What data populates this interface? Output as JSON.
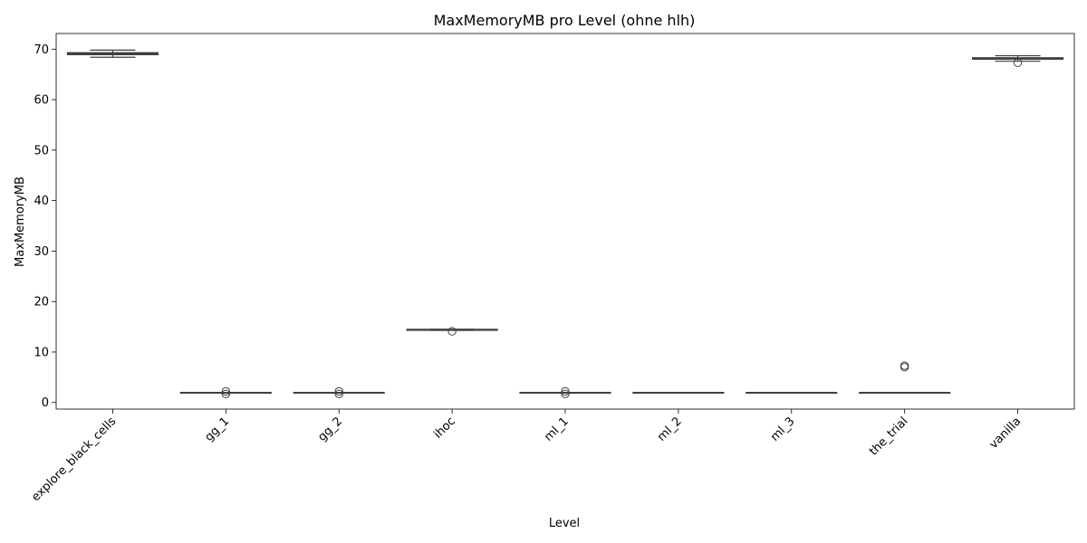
{
  "chart_data": {
    "type": "box",
    "title": "MaxMemoryMB pro Level (ohne hlh)",
    "xlabel": "Level",
    "ylabel": "MaxMemoryMB",
    "ylim": [
      -1.3,
      73.1
    ],
    "yticks": [
      0,
      10,
      20,
      30,
      40,
      50,
      60,
      70
    ],
    "grid": false,
    "colors": {
      "box_face": "#3a75ad",
      "line": "#3f3f3f",
      "frame": "#000000"
    },
    "categories": [
      "explore_black_cells",
      "gg_1",
      "gg_2",
      "ihoc",
      "ml_1",
      "ml_2",
      "ml_3",
      "the_trial",
      "vanilla"
    ],
    "boxes": [
      {
        "category": "explore_black_cells",
        "whisker_low": 68.4,
        "q1": 68.9,
        "median": 69.1,
        "q3": 69.3,
        "whisker_high": 69.8,
        "outliers": []
      },
      {
        "category": "gg_1",
        "whisker_low": 1.9,
        "q1": 1.9,
        "median": 1.9,
        "q3": 2.0,
        "whisker_high": 2.0,
        "outliers": [
          1.7,
          2.2
        ]
      },
      {
        "category": "gg_2",
        "whisker_low": 1.9,
        "q1": 1.9,
        "median": 1.9,
        "q3": 2.0,
        "whisker_high": 2.0,
        "outliers": [
          1.7,
          2.2
        ]
      },
      {
        "category": "ihoc",
        "whisker_low": 14.3,
        "q1": 14.3,
        "median": 14.4,
        "q3": 14.5,
        "whisker_high": 14.5,
        "outliers": [
          14.1
        ]
      },
      {
        "category": "ml_1",
        "whisker_low": 1.9,
        "q1": 1.9,
        "median": 1.9,
        "q3": 2.0,
        "whisker_high": 2.0,
        "outliers": [
          1.7,
          2.2
        ]
      },
      {
        "category": "ml_2",
        "whisker_low": 1.9,
        "q1": 1.9,
        "median": 1.9,
        "q3": 2.0,
        "whisker_high": 2.0,
        "outliers": []
      },
      {
        "category": "ml_3",
        "whisker_low": 1.9,
        "q1": 1.9,
        "median": 1.9,
        "q3": 2.0,
        "whisker_high": 2.0,
        "outliers": []
      },
      {
        "category": "the_trial",
        "whisker_low": 1.9,
        "q1": 1.9,
        "median": 1.9,
        "q3": 2.0,
        "whisker_high": 2.0,
        "outliers": [
          7.0,
          7.3
        ]
      },
      {
        "category": "vanilla",
        "whisker_low": 67.6,
        "q1": 68.0,
        "median": 68.1,
        "q3": 68.3,
        "whisker_high": 68.7,
        "outliers": [
          67.3
        ]
      }
    ]
  }
}
